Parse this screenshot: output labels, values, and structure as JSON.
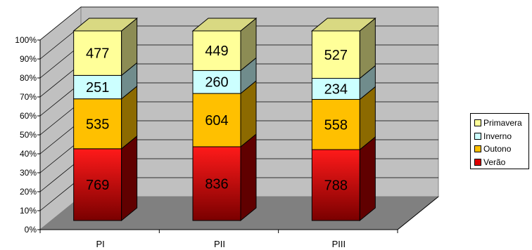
{
  "chart_data": {
    "type": "bar",
    "stacked": "percent",
    "three_d": true,
    "categories": [
      "PI",
      "PII",
      "PIII"
    ],
    "series": [
      {
        "name": "Verão",
        "values": [
          769,
          836,
          788
        ],
        "color": "#e00000"
      },
      {
        "name": "Outono",
        "values": [
          535,
          604,
          558
        ],
        "color": "#ffc000"
      },
      {
        "name": "Inverno",
        "values": [
          251,
          260,
          234
        ],
        "color": "#ccffff"
      },
      {
        "name": "Primavera",
        "values": [
          477,
          449,
          527
        ],
        "color": "#ffff99"
      }
    ],
    "y_ticks": [
      "0%",
      "10%",
      "20%",
      "30%",
      "40%",
      "50%",
      "60%",
      "70%",
      "80%",
      "90%",
      "100%"
    ],
    "ylim": [
      0,
      100
    ],
    "grid": true,
    "legend_position": "right",
    "legend_order": [
      "Primavera",
      "Inverno",
      "Outono",
      "Verão"
    ]
  }
}
